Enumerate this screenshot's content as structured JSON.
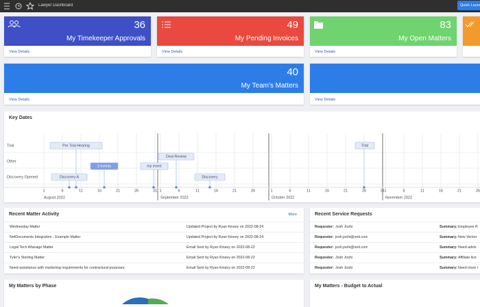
{
  "header": {
    "title": "Lawyer Dashboard",
    "button": "Quick Launch"
  },
  "cards": [
    {
      "value": "36",
      "title": "My Timekeeper Approvals",
      "link": "View Details"
    },
    {
      "value": "49",
      "title": "My Pending Invoices",
      "link": "View Details"
    },
    {
      "value": "83",
      "title": "My Open Matters",
      "link": "View Details"
    },
    {
      "value": "40",
      "title": "My Team's Matters",
      "link": "View Details"
    },
    {
      "link": "View Details"
    }
  ],
  "key_dates": {
    "title": "Key Dates",
    "rows": [
      {
        "label": "Trial",
        "events": [
          "Pre Trial Hearing",
          "Trial"
        ]
      },
      {
        "label": "Other",
        "events": [
          "2 events",
          "my event",
          "Deal Review"
        ]
      },
      {
        "label": "Discovery Opened",
        "events": [
          "Discovery A",
          "Discovery"
        ]
      }
    ],
    "months": [
      {
        "label": "August 2022",
        "days": [
          "1",
          "6",
          "11",
          "16",
          "21",
          "26",
          "31"
        ]
      },
      {
        "label": "September 2022",
        "days": [
          "1",
          "6",
          "11",
          "16",
          "21",
          "26"
        ]
      },
      {
        "label": "October 2022",
        "days": [
          "1",
          "6",
          "11",
          "16",
          "21",
          "26",
          "31"
        ]
      },
      {
        "label": "November 2022",
        "days": [
          "1",
          "6",
          "11",
          "16",
          "21",
          "26"
        ]
      }
    ]
  },
  "activity": {
    "title": "Recent Matter Activity",
    "more": "More",
    "rows": [
      [
        "Wednesday Matter",
        "Updated Project by Ryan Kinsey on 2022-08-24"
      ],
      [
        "NetDocuments Integration - Example Matter",
        "Updated Project by Ryan Kinsey on 2022-08-24"
      ],
      [
        "Legal Tech iManage Matter",
        "Email Sent by Ryan Kinsey on 2022-08-22"
      ],
      [
        "Tyler's Sterling Matter",
        "Email Sent by Ryan Kinsey on 2022-08-22"
      ],
      [
        "Need assistance with marketing requirements for contractural purposes.",
        "Email Sent by Ryan Kinsey on 2022-08-22"
      ]
    ]
  },
  "requests": {
    "title": "Recent Service Requests",
    "requester_label": "Requester:",
    "summary_label": "Summary:",
    "rows": [
      [
        "Josh Joshi",
        "Employee R"
      ],
      [
        "josh.joshi@onit.com",
        "New Ventur"
      ],
      [
        "josh.joshi@onit.com",
        "Need advis"
      ],
      [
        "Josh Joshi",
        "Affiliate lice"
      ],
      [
        "Josh Joshi",
        "Need more i"
      ]
    ]
  },
  "phase": {
    "title": "My Matters by Phase"
  },
  "budget": {
    "title": "My Matters - Budget to Actual"
  }
}
